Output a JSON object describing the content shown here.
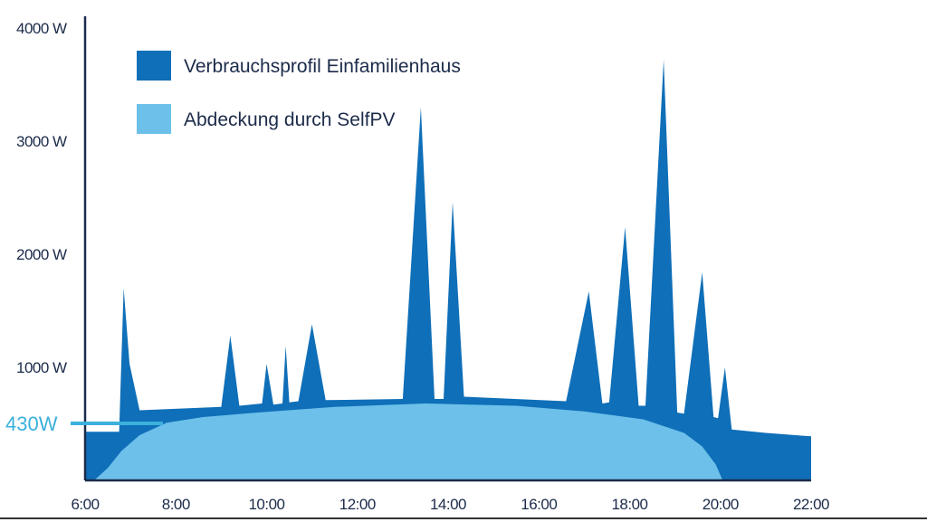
{
  "chart_data": {
    "type": "area",
    "x_ticks": [
      "6:00",
      "8:00",
      "10:00",
      "12:00",
      "14:00",
      "16:00",
      "18:00",
      "20:00",
      "22:00"
    ],
    "y_ticks": [
      "4000 W",
      "3000 W",
      "2000 W",
      "1000 W"
    ],
    "x_range_hours": [
      6,
      22
    ],
    "y_range_watts": [
      0,
      4000
    ],
    "legend_position": "top-left",
    "marker": {
      "label": "430W",
      "value": 430,
      "color": "#3bb0dc"
    },
    "series": [
      {
        "name": "Verbrauchsprofil Einfamilienhaus",
        "color": "#0f6fb8",
        "points": [
          [
            6.0,
            430
          ],
          [
            6.75,
            430
          ],
          [
            6.85,
            1700
          ],
          [
            6.98,
            1030
          ],
          [
            7.2,
            620
          ],
          [
            9.0,
            650
          ],
          [
            9.2,
            1280
          ],
          [
            9.4,
            660
          ],
          [
            9.9,
            680
          ],
          [
            10.0,
            1030
          ],
          [
            10.15,
            670
          ],
          [
            10.35,
            680
          ],
          [
            10.42,
            1190
          ],
          [
            10.5,
            690
          ],
          [
            10.7,
            700
          ],
          [
            11.0,
            1380
          ],
          [
            11.3,
            710
          ],
          [
            13.0,
            720
          ],
          [
            13.4,
            3300
          ],
          [
            13.7,
            720
          ],
          [
            13.9,
            720
          ],
          [
            14.1,
            2460
          ],
          [
            14.35,
            740
          ],
          [
            16.6,
            700
          ],
          [
            17.1,
            1670
          ],
          [
            17.4,
            680
          ],
          [
            17.55,
            690
          ],
          [
            17.9,
            2240
          ],
          [
            18.2,
            660
          ],
          [
            18.35,
            660
          ],
          [
            18.75,
            3720
          ],
          [
            19.05,
            600
          ],
          [
            19.2,
            590
          ],
          [
            19.6,
            1840
          ],
          [
            19.85,
            560
          ],
          [
            19.95,
            550
          ],
          [
            20.1,
            1000
          ],
          [
            20.25,
            450
          ],
          [
            21.0,
            420
          ],
          [
            22.3,
            390
          ]
        ]
      },
      {
        "name": "Abdeckung durch SelfPV",
        "color": "#6cc0ea",
        "points": [
          [
            6.2,
            0
          ],
          [
            6.5,
            110
          ],
          [
            6.8,
            260
          ],
          [
            7.2,
            400
          ],
          [
            7.8,
            510
          ],
          [
            8.6,
            560
          ],
          [
            9.8,
            600
          ],
          [
            11.5,
            650
          ],
          [
            13.5,
            680
          ],
          [
            15.5,
            660
          ],
          [
            17.0,
            610
          ],
          [
            18.3,
            540
          ],
          [
            19.2,
            420
          ],
          [
            19.6,
            300
          ],
          [
            19.9,
            140
          ],
          [
            20.05,
            0
          ]
        ]
      }
    ]
  }
}
